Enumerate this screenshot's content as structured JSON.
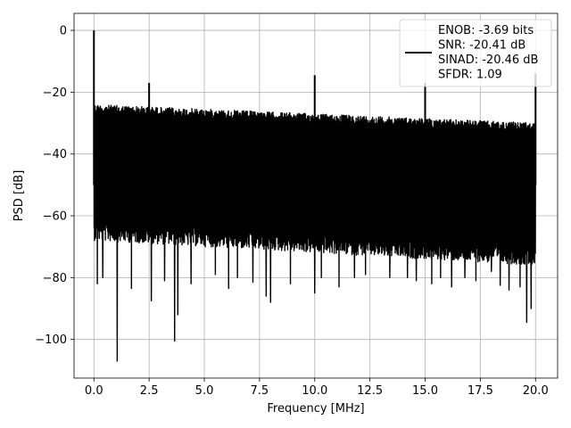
{
  "chart_data": {
    "type": "line",
    "xlabel": "Frequency [MHz]",
    "ylabel": "PSD [dB]",
    "xlim": [
      -0.9,
      21.0
    ],
    "ylim": [
      -112.5,
      5.5
    ],
    "xticks": [
      0.0,
      2.5,
      5.0,
      7.5,
      10.0,
      12.5,
      15.0,
      17.5,
      20.0
    ],
    "xtick_labels": [
      "0.0",
      "2.5",
      "5.0",
      "7.5",
      "10.0",
      "12.5",
      "15.0",
      "17.5",
      "20.0"
    ],
    "yticks": [
      0,
      -20,
      -40,
      -60,
      -80,
      -100
    ],
    "ytick_labels": [
      "0",
      "−20",
      "−40",
      "−60",
      "−80",
      "−100"
    ],
    "grid": true,
    "legend_position": "top-right",
    "series": [
      {
        "name": "ENOB: -3.69 bits\nSNR: -20.41 dB\nSINAD: -20.46 dB\nSFDR: 1.09",
        "color": "#000000",
        "noise_band": {
          "upper_start": -24,
          "upper_end": -30,
          "lower_start": -62,
          "lower_end": -70
        },
        "peaks": [
          {
            "x": 0.0,
            "y": 0
          },
          {
            "x": 2.5,
            "y": -17
          },
          {
            "x": 10.0,
            "y": -14.5
          },
          {
            "x": 15.0,
            "y": -17
          },
          {
            "x": 20.0,
            "y": -14
          }
        ],
        "dips": [
          {
            "x": 0.15,
            "y": -82
          },
          {
            "x": 0.4,
            "y": -80
          },
          {
            "x": 1.05,
            "y": -107
          },
          {
            "x": 1.7,
            "y": -83.5
          },
          {
            "x": 2.6,
            "y": -87.5
          },
          {
            "x": 3.2,
            "y": -81
          },
          {
            "x": 3.65,
            "y": -100.5
          },
          {
            "x": 3.8,
            "y": -92
          },
          {
            "x": 4.4,
            "y": -82
          },
          {
            "x": 5.5,
            "y": -79
          },
          {
            "x": 6.1,
            "y": -83.5
          },
          {
            "x": 6.5,
            "y": -80
          },
          {
            "x": 7.2,
            "y": -81.5
          },
          {
            "x": 7.8,
            "y": -86
          },
          {
            "x": 8.0,
            "y": -88
          },
          {
            "x": 8.9,
            "y": -82
          },
          {
            "x": 10.0,
            "y": -85
          },
          {
            "x": 10.3,
            "y": -80
          },
          {
            "x": 11.1,
            "y": -83
          },
          {
            "x": 11.8,
            "y": -80
          },
          {
            "x": 12.3,
            "y": -79
          },
          {
            "x": 13.4,
            "y": -80
          },
          {
            "x": 14.2,
            "y": -80
          },
          {
            "x": 14.6,
            "y": -81
          },
          {
            "x": 15.3,
            "y": -82
          },
          {
            "x": 15.7,
            "y": -80
          },
          {
            "x": 16.2,
            "y": -83
          },
          {
            "x": 16.8,
            "y": -80
          },
          {
            "x": 17.3,
            "y": -81
          },
          {
            "x": 18.0,
            "y": -78
          },
          {
            "x": 18.4,
            "y": -82.5
          },
          {
            "x": 18.8,
            "y": -84
          },
          {
            "x": 19.3,
            "y": -83
          },
          {
            "x": 19.6,
            "y": -94.5
          },
          {
            "x": 19.8,
            "y": -90
          }
        ]
      }
    ]
  }
}
